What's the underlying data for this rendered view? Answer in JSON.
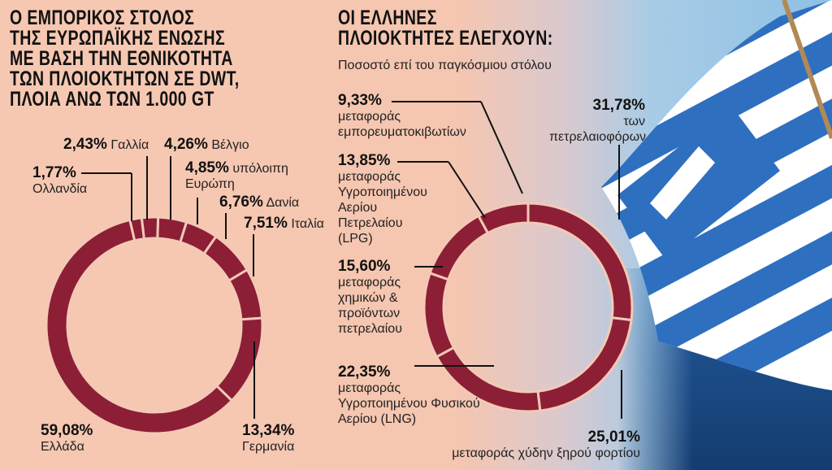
{
  "left": {
    "title": "Ο ΕΜΠΟΡΙΚΟΣ ΣΤΟΛΟΣ\nΤΗΣ ΕΥΡΩΠΑΪΚΗΣ ΕΝΩΣΗΣ\nΜΕ ΒΑΣΗ ΤΗΝ ΕΘΝΙΚΟΤΗΤΑ\nΤΩΝ ΠΛΟΙΟΚΤΗΤΩΝ ΣΕ DWT,\nΠΛΟΙΑ ΑΝΩ ΤΩΝ 1.000 GT"
  },
  "right": {
    "title": "ΟΙ ΕΛΛΗΝΕΣ\nΠΛΟΙΟΚΤΗΤΕΣ ΕΛΕΓΧΟΥΝ:",
    "subtitle": "Ποσοστό επί του παγκόσμιου στόλου"
  },
  "colors": {
    "ring": "#8c1f36",
    "background": "#f5c7b1"
  },
  "chart_data": [
    {
      "type": "pie",
      "donut": true,
      "title": "Ο ΕΜΠΟΡΙΚΟΣ ΣΤΟΛΟΣ ΤΗΣ ΕΥΡΩΠΑΪΚΗΣ ΕΝΩΣΗΣ ΜΕ ΒΑΣΗ ΤΗΝ ΕΘΝΙΚΟΤΗΤΑ ΤΩΝ ΠΛΟΙΟΚΤΗΤΩΝ ΣΕ DWT, ΠΛΟΙΑ ΑΝΩ ΤΩΝ 1.000 GT",
      "slices": [
        {
          "label": "Βέλγιο",
          "pct": "4,26%",
          "value": 4.26
        },
        {
          "label": "υπόλοιπη Ευρώπη",
          "pct": "4,85%",
          "value": 4.85
        },
        {
          "label": "Δανία",
          "pct": "6,76%",
          "value": 6.76
        },
        {
          "label": "Ιταλία",
          "pct": "7,51%",
          "value": 7.51
        },
        {
          "label": "Γερμανία",
          "pct": "13,34%",
          "value": 13.34
        },
        {
          "label": "Ελλάδα",
          "pct": "59,08%",
          "value": 59.08
        },
        {
          "label": "Ολλανδία",
          "pct": "1,77%",
          "value": 1.77
        },
        {
          "label": "Γαλλία",
          "pct": "2,43%",
          "value": 2.43
        }
      ]
    },
    {
      "type": "pie",
      "donut": true,
      "title": "ΟΙ ΕΛΛΗΝΕΣ ΠΛΟΙΟΚΤΗΤΕΣ ΕΛΕΓΧΟΥΝ:",
      "subtitle": "Ποσοστό επί του παγκόσμιου στόλου",
      "slices": [
        {
          "label": "των πετρελαιοφόρων",
          "pct": "31,78%",
          "value": 31.78
        },
        {
          "label": "μεταφοράς χύδην ξηρού φορτίου",
          "pct": "25,01%",
          "value": 25.01
        },
        {
          "label": "μεταφοράς Υγροποιημένου Φυσικού Αερίου (LNG)",
          "pct": "22,35%",
          "value": 22.35
        },
        {
          "label": "μεταφοράς χημικών & προϊόντων πετρελαίου",
          "pct": "15,60%",
          "value": 15.6
        },
        {
          "label": "μεταφοράς Υγροποιημένου Αερίου Πετρελαίου (LPG)",
          "pct": "13,85%",
          "value": 13.85
        },
        {
          "label": "μεταφοράς εμπορευματοκιβωτίων",
          "pct": "9,33%",
          "value": 9.33
        }
      ]
    }
  ]
}
